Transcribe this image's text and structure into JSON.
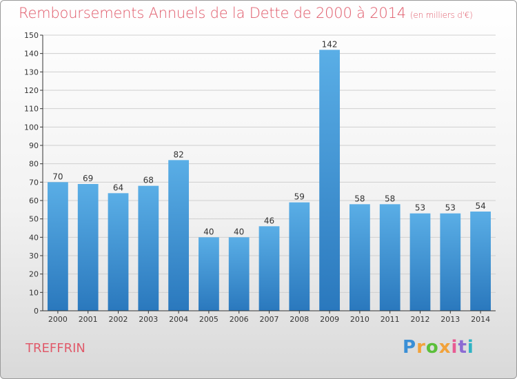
{
  "header": {
    "title": "Remboursements Annuels de la Dette de 2000 à 2014",
    "unit": "(en milliers d'€)"
  },
  "footer": {
    "commune": "TREFFRIN",
    "brand_letters": [
      "P",
      "r",
      "o",
      "x",
      "i",
      "t",
      "i"
    ]
  },
  "colors": {
    "title": "#e05a6a",
    "bar_top": "#5aaee6",
    "bar_bottom": "#2a78bd",
    "axis": "#333333",
    "grid": "#cfcfcf"
  },
  "chart_data": {
    "type": "bar",
    "title": "Remboursements Annuels de la Dette de 2000 à 2014",
    "xlabel": "",
    "ylabel": "",
    "ylim": [
      0,
      150
    ],
    "yticks": [
      0,
      10,
      20,
      30,
      40,
      50,
      60,
      70,
      80,
      90,
      100,
      110,
      120,
      130,
      140,
      150
    ],
    "grid": true,
    "categories": [
      "2000",
      "2001",
      "2002",
      "2003",
      "2004",
      "2005",
      "2006",
      "2007",
      "2008",
      "2009",
      "2010",
      "2011",
      "2012",
      "2013",
      "2014"
    ],
    "values": [
      70,
      69,
      64,
      68,
      82,
      40,
      40,
      46,
      59,
      142,
      58,
      58,
      53,
      53,
      54
    ]
  }
}
